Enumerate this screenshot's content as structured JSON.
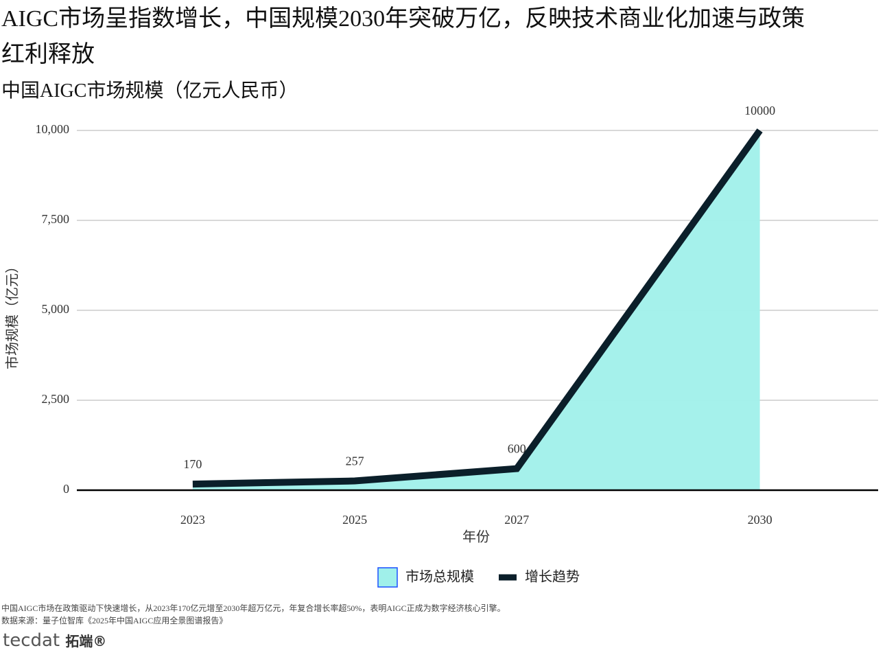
{
  "chart_data": {
    "type": "area-line",
    "title": "AIGC市场呈指数增长，中国规模2030年突破万亿，反映技术商业化加速与政策红利释放",
    "subtitle": "中国AIGC市场规模（亿元人民币）",
    "x_label": "年份",
    "y_label": "市场规模（亿元）",
    "x": [
      2023,
      2025,
      2027,
      2030
    ],
    "series": [
      {
        "name": "市场总规模",
        "color": "#a0f0ea",
        "kind": "area",
        "values": [
          170,
          257,
          600,
          10000
        ]
      },
      {
        "name": "增长趋势",
        "color": "#0b1f2a",
        "kind": "line",
        "values": [
          170,
          257,
          600,
          10000
        ]
      }
    ],
    "xlim": [
      2021.57,
      2031.46
    ],
    "xticks": [
      2023,
      2025,
      2027,
      2030
    ],
    "ylim": [
      0,
      10000
    ],
    "yticks": [
      0,
      {
        "value": 2500,
        "label": "2,500"
      },
      {
        "value": 5000,
        "label": "5,000"
      },
      {
        "value": 7500,
        "label": "7,500"
      },
      {
        "value": 10000,
        "label": "10,000"
      }
    ],
    "grid": true,
    "legend": "bottom",
    "notes": [
      "中国AIGC市场在政策驱动下快速增长，从2023年170亿元增至2030年超万亿元，年复合增长率超50%，表明AIGC正成为数字经济核心引擎。",
      "数据来源：量子位智库《2025年中国AIGC应用全景图谱报告》"
    ],
    "logo": [
      "tecdat",
      "拓端®"
    ]
  }
}
